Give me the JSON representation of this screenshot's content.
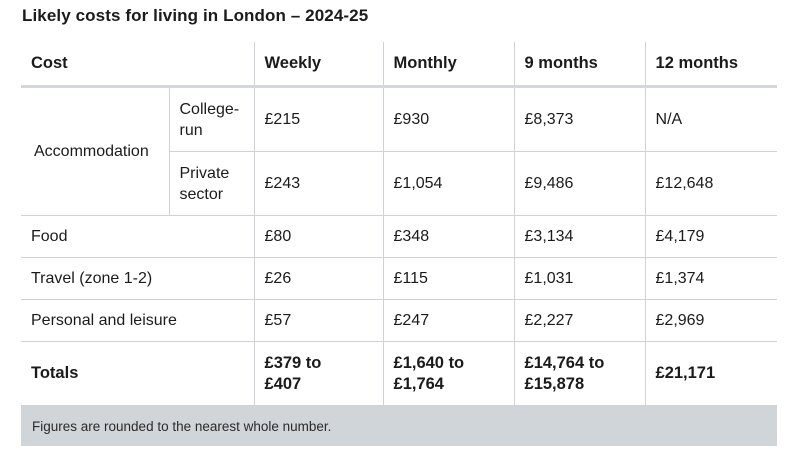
{
  "caption": "Likely costs for living in London – 2024-25",
  "headers": [
    "Cost",
    "Weekly",
    "Monthly",
    "9 months",
    "12 months"
  ],
  "accommodation": {
    "label": "Accommodation",
    "rows": [
      {
        "type": "College-\nrun",
        "values": [
          "£215",
          "£930",
          "£8,373",
          "N/A"
        ]
      },
      {
        "type": "Private\nsector",
        "values": [
          "£243",
          "£1,054",
          "£9,486",
          "£12,648"
        ]
      }
    ]
  },
  "rows": [
    {
      "label": "Food",
      "values": [
        "£80",
        "£348",
        "£3,134",
        "£4,179"
      ]
    },
    {
      "label": "Travel (zone 1-2)",
      "values": [
        "£26",
        "£115",
        "£1,031",
        "£1,374"
      ]
    },
    {
      "label": "Personal and leisure",
      "values": [
        "£57",
        "£247",
        "£2,227",
        "£2,969"
      ]
    }
  ],
  "totals": {
    "label": "Totals",
    "values": [
      "£379 to\n£407",
      "£1,640 to\n£1,764",
      "£14,764 to\n£15,878",
      "£21,171"
    ]
  },
  "footnote": "Figures are rounded to the nearest whole number."
}
